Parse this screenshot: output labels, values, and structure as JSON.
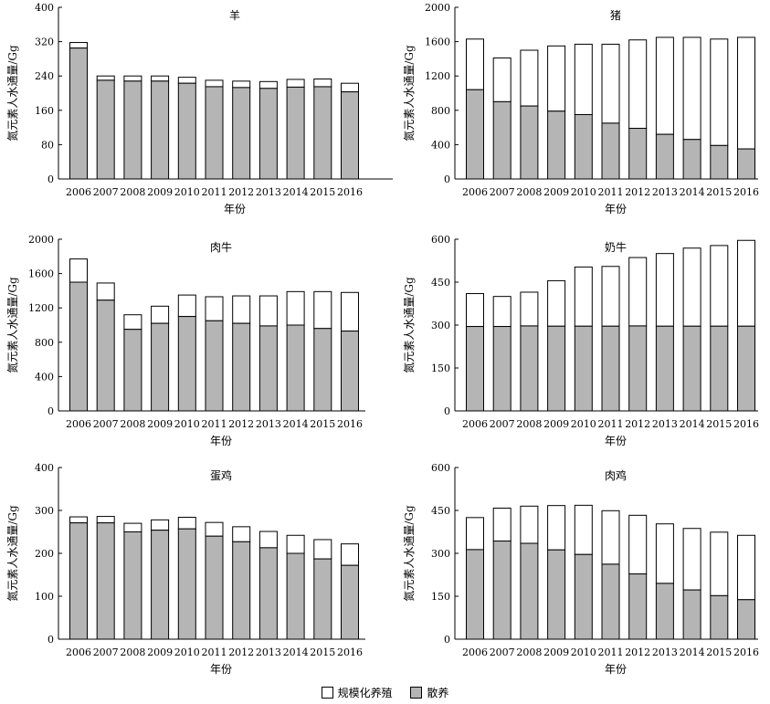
{
  "legend": {
    "scale_label": "规模化养殖",
    "free_label": "散养",
    "scale_color": "#ffffff",
    "free_color": "#b5b5b5"
  },
  "chart_data": [
    {
      "type": "bar",
      "stacked": true,
      "title": "羊",
      "xlabel": "年份",
      "ylabel": "氮元素人水通量/Gg",
      "ylim": [
        0,
        400
      ],
      "yticks": [
        0,
        80,
        160,
        240,
        320,
        400
      ],
      "categories": [
        "2006",
        "2007",
        "2008",
        "2009",
        "2010",
        "2011",
        "2012",
        "2013",
        "2014",
        "2015",
        "2016"
      ],
      "series": [
        {
          "name": "散养",
          "values": [
            305,
            230,
            228,
            228,
            223,
            215,
            213,
            211,
            214,
            215,
            203
          ]
        },
        {
          "name": "规模化养殖",
          "values": [
            13,
            10,
            12,
            12,
            14,
            15,
            15,
            16,
            18,
            18,
            20
          ]
        }
      ]
    },
    {
      "type": "bar",
      "stacked": true,
      "title": "猪",
      "xlabel": "年份",
      "ylabel": "氮元素人水通量/Gg",
      "ylim": [
        0,
        2000
      ],
      "yticks": [
        0,
        400,
        800,
        1200,
        1600,
        2000
      ],
      "categories": [
        "2006",
        "2007",
        "2008",
        "2009",
        "2010",
        "2011",
        "2012",
        "2013",
        "2014",
        "2015",
        "2016"
      ],
      "series": [
        {
          "name": "散养",
          "values": [
            1040,
            900,
            850,
            790,
            750,
            650,
            590,
            520,
            460,
            390,
            350
          ]
        },
        {
          "name": "规模化养殖",
          "values": [
            590,
            510,
            650,
            760,
            820,
            920,
            1030,
            1130,
            1190,
            1240,
            1300
          ]
        }
      ]
    },
    {
      "type": "bar",
      "stacked": true,
      "title": "肉牛",
      "xlabel": "年份",
      "ylabel": "氮元素人水通量/Gg",
      "ylim": [
        0,
        2000
      ],
      "yticks": [
        0,
        400,
        800,
        1200,
        1600,
        2000
      ],
      "categories": [
        "2006",
        "2007",
        "2008",
        "2009",
        "2010",
        "2011",
        "2012",
        "2013",
        "2014",
        "2015",
        "2016"
      ],
      "series": [
        {
          "name": "散养",
          "values": [
            1500,
            1290,
            950,
            1020,
            1100,
            1050,
            1020,
            990,
            1000,
            960,
            930
          ]
        },
        {
          "name": "规模化养殖",
          "values": [
            270,
            200,
            170,
            200,
            250,
            280,
            320,
            350,
            390,
            430,
            450
          ]
        }
      ]
    },
    {
      "type": "bar",
      "stacked": true,
      "title": "奶牛",
      "xlabel": "年份",
      "ylabel": "氮元素人水通量/Gg",
      "ylim": [
        0,
        600
      ],
      "yticks": [
        0,
        150,
        300,
        450,
        600
      ],
      "categories": [
        "2006",
        "2007",
        "2008",
        "2009",
        "2010",
        "2011",
        "2012",
        "2013",
        "2014",
        "2015",
        "2016"
      ],
      "series": [
        {
          "name": "散养",
          "values": [
            295,
            295,
            297,
            296,
            296,
            296,
            297,
            296,
            296,
            296,
            296
          ]
        },
        {
          "name": "规模化养殖",
          "values": [
            115,
            105,
            118,
            159,
            207,
            209,
            239,
            254,
            273,
            282,
            300
          ]
        }
      ]
    },
    {
      "type": "bar",
      "stacked": true,
      "title": "蛋鸡",
      "xlabel": "年份",
      "ylabel": "氮元素人水通量/Gg",
      "ylim": [
        0,
        400
      ],
      "yticks": [
        0,
        100,
        200,
        300,
        400
      ],
      "categories": [
        "2006",
        "2007",
        "2008",
        "2009",
        "2010",
        "2011",
        "2012",
        "2013",
        "2014",
        "2015",
        "2016"
      ],
      "series": [
        {
          "name": "散养",
          "values": [
            271,
            271,
            250,
            254,
            257,
            240,
            227,
            213,
            200,
            187,
            172
          ]
        },
        {
          "name": "规模化养殖",
          "values": [
            14,
            15,
            20,
            24,
            27,
            32,
            35,
            38,
            42,
            45,
            50
          ]
        }
      ]
    },
    {
      "type": "bar",
      "stacked": true,
      "title": "肉鸡",
      "xlabel": "年份",
      "ylabel": "氮元素人水通量/Gg",
      "ylim": [
        0,
        600
      ],
      "yticks": [
        0,
        150,
        300,
        450,
        600
      ],
      "categories": [
        "2006",
        "2007",
        "2008",
        "2009",
        "2010",
        "2011",
        "2012",
        "2013",
        "2014",
        "2015",
        "2016"
      ],
      "series": [
        {
          "name": "散养",
          "values": [
            313,
            343,
            335,
            312,
            296,
            262,
            228,
            195,
            172,
            152,
            138
          ]
        },
        {
          "name": "规模化养殖",
          "values": [
            112,
            115,
            130,
            155,
            172,
            187,
            205,
            208,
            215,
            222,
            225
          ]
        }
      ]
    }
  ]
}
